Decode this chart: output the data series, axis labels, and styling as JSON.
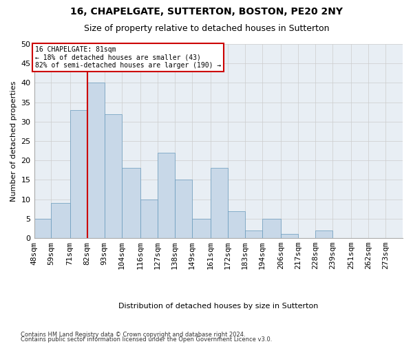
{
  "title": "16, CHAPELGATE, SUTTERTON, BOSTON, PE20 2NY",
  "subtitle": "Size of property relative to detached houses in Sutterton",
  "xlabel": "Distribution of detached houses by size in Sutterton",
  "ylabel": "Number of detached properties",
  "bar_values": [
    5,
    9,
    33,
    40,
    32,
    18,
    10,
    22,
    15,
    5,
    18,
    7,
    2,
    5,
    1,
    0,
    2,
    0
  ],
  "bin_edges": [
    48,
    59,
    71,
    82,
    93,
    104,
    116,
    127,
    138,
    149,
    161,
    172,
    183,
    194,
    206,
    217,
    228,
    239,
    251
  ],
  "tick_labels": [
    "48sqm",
    "59sqm",
    "71sqm",
    "82sqm",
    "93sqm",
    "104sqm",
    "116sqm",
    "127sqm",
    "138sqm",
    "149sqm",
    "161sqm",
    "172sqm",
    "183sqm",
    "194sqm",
    "206sqm",
    "217sqm",
    "228sqm",
    "239sqm",
    "251sqm",
    "262sqm",
    "273sqm"
  ],
  "bar_color": "#c8d8e8",
  "bar_edge_color": "#6699bb",
  "property_line_x": 82,
  "annotation_text_line1": "16 CHAPELGATE: 81sqm",
  "annotation_text_line2": "← 18% of detached houses are smaller (43)",
  "annotation_text_line3": "82% of semi-detached houses are larger (190) →",
  "annotation_box_color": "#ffffff",
  "annotation_box_edge": "#cc0000",
  "ylim": [
    0,
    50
  ],
  "yticks": [
    0,
    5,
    10,
    15,
    20,
    25,
    30,
    35,
    40,
    45,
    50
  ],
  "grid_color": "#cccccc",
  "bg_color": "#e8eef4",
  "footer_line1": "Contains HM Land Registry data © Crown copyright and database right 2024.",
  "footer_line2": "Contains public sector information licensed under the Open Government Licence v3.0."
}
